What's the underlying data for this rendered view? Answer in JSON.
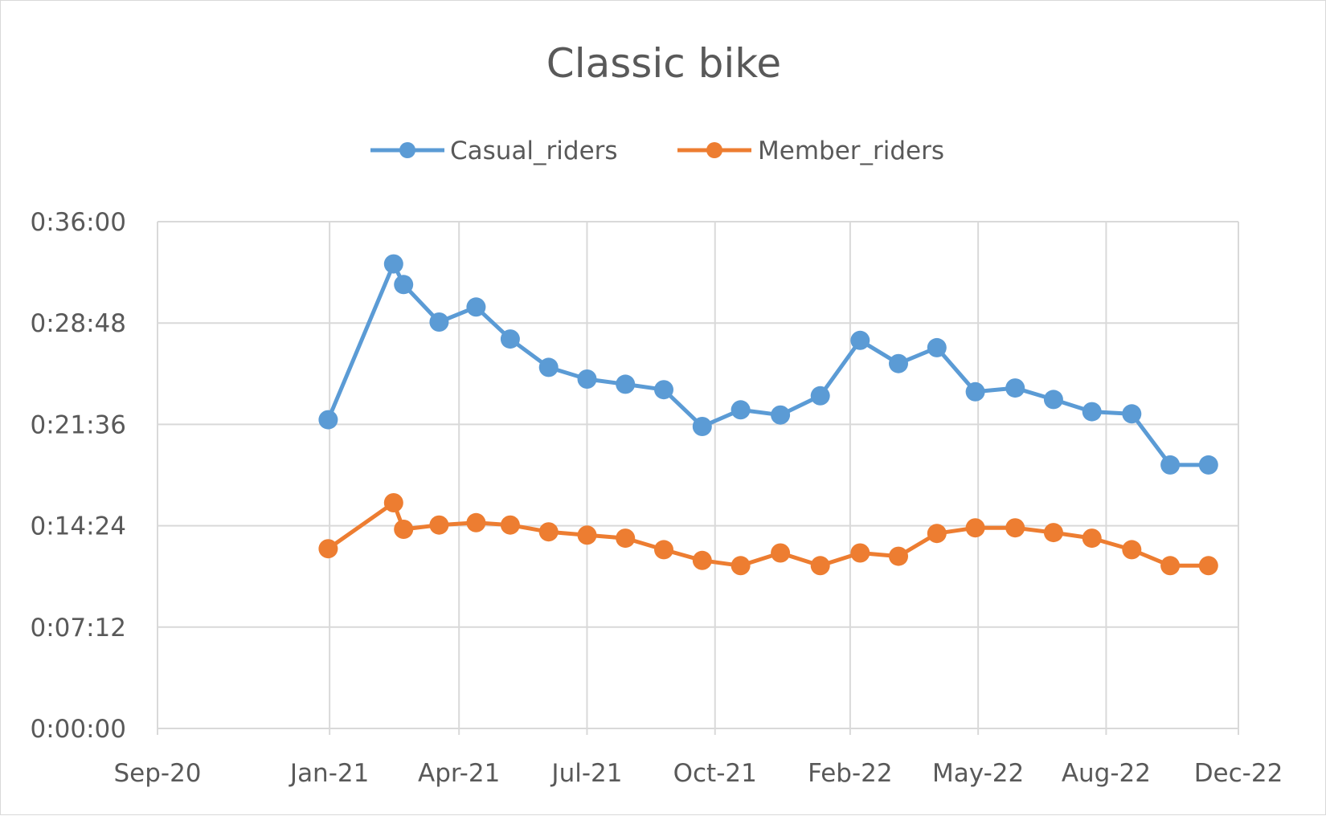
{
  "chart_data": {
    "type": "line",
    "title": "Classic bike",
    "xlabel": "",
    "ylabel": "",
    "x_tick_labels": [
      "Sep-20",
      "Jan-21",
      "Apr-21",
      "Jul-21",
      "Oct-21",
      "Feb-22",
      "May-22",
      "Aug-22",
      "Dec-22"
    ],
    "x_tick_dates": [
      "2020-09-01",
      "2020-12-31",
      "2021-04-01",
      "2021-06-30",
      "2021-09-28",
      "2022-01-01",
      "2022-04-01",
      "2022-06-30",
      "2022-10-01"
    ],
    "xlim": [
      "2020-09-01",
      "2022-10-01"
    ],
    "y_tick_labels": [
      "0:00:00",
      "0:07:12",
      "0:14:24",
      "0:21:36",
      "0:28:48",
      "0:36:00"
    ],
    "ylim": [
      "0:00:00",
      "0:36:00"
    ],
    "grid": true,
    "legend_position": "top-center",
    "series": [
      {
        "name": "Casual_riders",
        "color": "#5b9bd5",
        "x": [
          "2020-12-30",
          "2021-02-14",
          "2021-02-21",
          "2021-03-18",
          "2021-04-13",
          "2021-05-07",
          "2021-06-03",
          "2021-06-30",
          "2021-07-27",
          "2021-08-23",
          "2021-09-19",
          "2021-10-16",
          "2021-11-13",
          "2021-12-11",
          "2022-01-08",
          "2022-02-04",
          "2022-03-03",
          "2022-03-30",
          "2022-04-27",
          "2022-05-24",
          "2022-06-20",
          "2022-07-18",
          "2022-08-14",
          "2022-09-10"
        ],
        "y": [
          "0:21:56",
          "0:33:00",
          "0:31:32",
          "0:28:52",
          "0:29:56",
          "0:27:40",
          "0:25:39",
          "0:24:49",
          "0:24:27",
          "0:24:04",
          "0:21:27",
          "0:22:38",
          "0:22:16",
          "0:23:38",
          "0:27:34",
          "0:25:55",
          "0:27:03",
          "0:23:55",
          "0:24:11",
          "0:23:22",
          "0:22:30",
          "0:22:21",
          "0:18:43",
          "0:18:43"
        ]
      },
      {
        "name": "Member_riders",
        "color": "#ed7d31",
        "x": [
          "2020-12-30",
          "2021-02-14",
          "2021-02-21",
          "2021-03-18",
          "2021-04-13",
          "2021-05-07",
          "2021-06-03",
          "2021-06-30",
          "2021-07-27",
          "2021-08-23",
          "2021-09-19",
          "2021-10-16",
          "2021-11-13",
          "2021-12-11",
          "2022-01-08",
          "2022-02-04",
          "2022-03-03",
          "2022-03-30",
          "2022-04-27",
          "2022-05-24",
          "2022-06-20",
          "2022-07-18",
          "2022-08-14",
          "2022-09-10"
        ],
        "y": [
          "0:12:46",
          "0:16:02",
          "0:14:09",
          "0:14:27",
          "0:14:37",
          "0:14:27",
          "0:13:58",
          "0:13:44",
          "0:13:31",
          "0:12:42",
          "0:11:56",
          "0:11:34",
          "0:12:28",
          "0:11:34",
          "0:12:28",
          "0:12:14",
          "0:13:51",
          "0:14:15",
          "0:14:15",
          "0:13:55",
          "0:13:31",
          "0:12:42",
          "0:11:34",
          "0:11:34"
        ]
      }
    ]
  }
}
